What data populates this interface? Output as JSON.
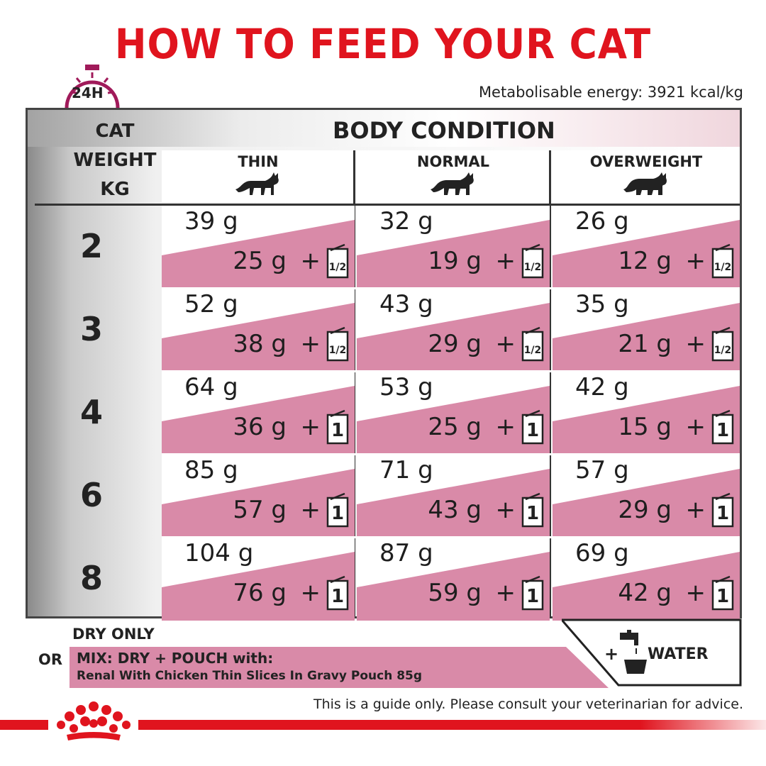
{
  "title": "HOW TO FEED YOUR CAT",
  "clock_label": "24H",
  "energy": "Metabolisable energy: 3921 kcal/kg",
  "header": {
    "weight_label": "CAT\nWEIGHT\nKG",
    "body_condition": "BODY CONDITION",
    "columns": [
      "THIN",
      "NORMAL",
      "OVERWEIGHT"
    ]
  },
  "rows": [
    {
      "weight": "2",
      "cells": [
        {
          "dry": "39 g",
          "mix": "25 g",
          "pouch": "1/2"
        },
        {
          "dry": "32 g",
          "mix": "19 g",
          "pouch": "1/2"
        },
        {
          "dry": "26 g",
          "mix": "12 g",
          "pouch": "1/2"
        }
      ]
    },
    {
      "weight": "3",
      "cells": [
        {
          "dry": "52 g",
          "mix": "38 g",
          "pouch": "1/2"
        },
        {
          "dry": "43 g",
          "mix": "29 g",
          "pouch": "1/2"
        },
        {
          "dry": "35 g",
          "mix": "21 g",
          "pouch": "1/2"
        }
      ]
    },
    {
      "weight": "4",
      "cells": [
        {
          "dry": "64 g",
          "mix": "36 g",
          "pouch": "1"
        },
        {
          "dry": "53 g",
          "mix": "25 g",
          "pouch": "1"
        },
        {
          "dry": "42 g",
          "mix": "15 g",
          "pouch": "1"
        }
      ]
    },
    {
      "weight": "6",
      "cells": [
        {
          "dry": "85 g",
          "mix": "57 g",
          "pouch": "1"
        },
        {
          "dry": "71 g",
          "mix": "43 g",
          "pouch": "1"
        },
        {
          "dry": "57 g",
          "mix": "29 g",
          "pouch": "1"
        }
      ]
    },
    {
      "weight": "8",
      "cells": [
        {
          "dry": "104 g",
          "mix": "76 g",
          "pouch": "1"
        },
        {
          "dry": "87 g",
          "mix": "59 g",
          "pouch": "1"
        },
        {
          "dry": "69 g",
          "mix": "42 g",
          "pouch": "1"
        }
      ]
    }
  ],
  "plus_sign": "+",
  "legend": {
    "dry_only": "DRY ONLY",
    "or": "OR",
    "mix_line1": "MIX: DRY + POUCH with:",
    "mix_line2": "Renal With Chicken Thin Slices In Gravy Pouch 85g",
    "water_plus": "+",
    "water": "WATER"
  },
  "disclaimer": "This is a guide only. Please consult your veterinarian for advice.",
  "colors": {
    "brand_red": "#e0141e",
    "pink_band": "#d98aa8",
    "dark": "#222222"
  },
  "icons": [
    "clock-icon",
    "cat-icon",
    "pouch-icon",
    "water-tap-icon",
    "royal-canin-crown-icon"
  ]
}
